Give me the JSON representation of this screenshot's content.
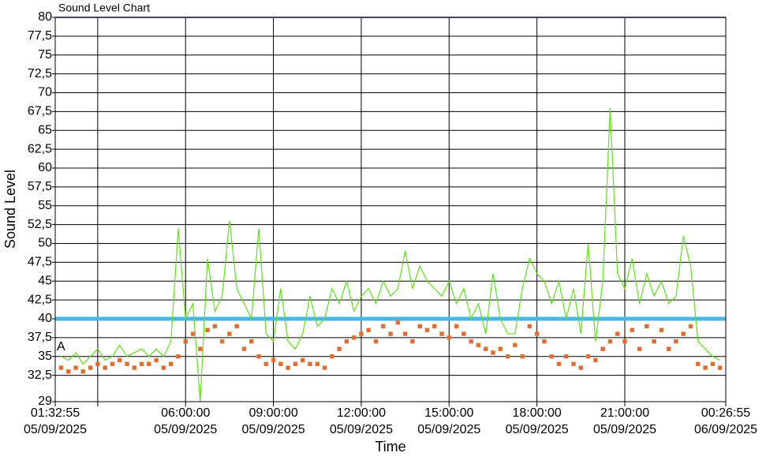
{
  "chart_data": {
    "type": "line",
    "title": "Sound Level Chart",
    "x_label": "Time",
    "y_label": "Sound Level",
    "annotation": "A",
    "xlim": [
      "2025-09-05T01:32:55",
      "2025-09-06T00:26:55"
    ],
    "xticks": [
      {
        "value": "2025-09-05T01:32:55",
        "label": [
          "01:32:55",
          "05/09/2025"
        ]
      },
      "2025-09-05T03:00:00",
      {
        "value": "2025-09-05T06:00:00",
        "label": [
          "06:00:00",
          "05/09/2025"
        ]
      },
      {
        "value": "2025-09-05T09:00:00",
        "label": [
          "09:00:00",
          "05/09/2025"
        ]
      },
      {
        "value": "2025-09-05T12:00:00",
        "label": [
          "12:00:00",
          "05/09/2025"
        ]
      },
      {
        "value": "2025-09-05T15:00:00",
        "label": [
          "15:00:00",
          "05/09/2025"
        ]
      },
      {
        "value": "2025-09-05T18:00:00",
        "label": [
          "18:00:00",
          "05/09/2025"
        ]
      },
      {
        "value": "2025-09-05T21:00:00",
        "label": [
          "21:00:00",
          "05/09/2025"
        ]
      },
      {
        "value": "2025-09-06T00:26:55",
        "label": [
          "00:26:55",
          "06/09/2025"
        ]
      }
    ],
    "ylim": [
      29,
      80
    ],
    "yticks": [
      29,
      {
        "value": 32.5,
        "label": "32,5"
      },
      35,
      {
        "value": 37.5,
        "label": "37,5"
      },
      40,
      {
        "value": 42.5,
        "label": "42,5"
      },
      45,
      {
        "value": 47.5,
        "label": "47,5"
      },
      50,
      {
        "value": 52.5,
        "label": "52,5"
      },
      55,
      {
        "value": 57.5,
        "label": "57,5"
      },
      60,
      {
        "value": 62.5,
        "label": "62,5"
      },
      65,
      {
        "value": 67.5,
        "label": "67,5"
      },
      70,
      {
        "value": 72.5,
        "label": "72,5"
      },
      75,
      {
        "value": 77.5,
        "label": "77,5"
      },
      80
    ],
    "grid": true,
    "reference_line": {
      "value": 40,
      "color": "#45b8e8"
    },
    "x": [
      "2025-09-05T01:45:00",
      "2025-09-05T02:00:00",
      "2025-09-05T02:15:00",
      "2025-09-05T02:30:00",
      "2025-09-05T02:45:00",
      "2025-09-05T03:00:00",
      "2025-09-05T03:15:00",
      "2025-09-05T03:30:00",
      "2025-09-05T03:45:00",
      "2025-09-05T04:00:00",
      "2025-09-05T04:15:00",
      "2025-09-05T04:30:00",
      "2025-09-05T04:45:00",
      "2025-09-05T05:00:00",
      "2025-09-05T05:15:00",
      "2025-09-05T05:30:00",
      "2025-09-05T05:45:00",
      "2025-09-05T06:00:00",
      "2025-09-05T06:15:00",
      "2025-09-05T06:30:00",
      "2025-09-05T06:45:00",
      "2025-09-05T07:00:00",
      "2025-09-05T07:15:00",
      "2025-09-05T07:30:00",
      "2025-09-05T07:45:00",
      "2025-09-05T08:00:00",
      "2025-09-05T08:15:00",
      "2025-09-05T08:30:00",
      "2025-09-05T08:45:00",
      "2025-09-05T09:00:00",
      "2025-09-05T09:15:00",
      "2025-09-05T09:30:00",
      "2025-09-05T09:45:00",
      "2025-09-05T10:00:00",
      "2025-09-05T10:15:00",
      "2025-09-05T10:30:00",
      "2025-09-05T10:45:00",
      "2025-09-05T11:00:00",
      "2025-09-05T11:15:00",
      "2025-09-05T11:30:00",
      "2025-09-05T11:45:00",
      "2025-09-05T12:00:00",
      "2025-09-05T12:15:00",
      "2025-09-05T12:30:00",
      "2025-09-05T12:45:00",
      "2025-09-05T13:00:00",
      "2025-09-05T13:15:00",
      "2025-09-05T13:30:00",
      "2025-09-05T13:45:00",
      "2025-09-05T14:00:00",
      "2025-09-05T14:15:00",
      "2025-09-05T14:30:00",
      "2025-09-05T14:45:00",
      "2025-09-05T15:00:00",
      "2025-09-05T15:15:00",
      "2025-09-05T15:30:00",
      "2025-09-05T15:45:00",
      "2025-09-05T16:00:00",
      "2025-09-05T16:15:00",
      "2025-09-05T16:30:00",
      "2025-09-05T16:45:00",
      "2025-09-05T17:00:00",
      "2025-09-05T17:15:00",
      "2025-09-05T17:30:00",
      "2025-09-05T17:45:00",
      "2025-09-05T18:00:00",
      "2025-09-05T18:15:00",
      "2025-09-05T18:30:00",
      "2025-09-05T18:45:00",
      "2025-09-05T19:00:00",
      "2025-09-05T19:15:00",
      "2025-09-05T19:30:00",
      "2025-09-05T19:45:00",
      "2025-09-05T20:00:00",
      "2025-09-05T20:15:00",
      "2025-09-05T20:30:00",
      "2025-09-05T20:45:00",
      "2025-09-05T21:00:00",
      "2025-09-05T21:15:00",
      "2025-09-05T21:30:00",
      "2025-09-05T21:45:00",
      "2025-09-05T22:00:00",
      "2025-09-05T22:15:00",
      "2025-09-05T22:30:00",
      "2025-09-05T22:45:00",
      "2025-09-05T23:00:00",
      "2025-09-05T23:15:00",
      "2025-09-05T23:30:00",
      "2025-09-05T23:45:00",
      "2025-09-06T00:00:00",
      "2025-09-06T00:15:00"
    ],
    "series": [
      {
        "color": "#66dd22",
        "style": "line",
        "values": [
          35,
          34.5,
          35.5,
          34,
          35,
          36,
          34.5,
          35,
          36.5,
          35,
          35.5,
          36,
          35,
          36,
          35,
          37,
          52,
          40,
          42,
          29,
          48,
          41,
          43,
          53,
          44,
          42,
          40,
          52,
          38,
          37,
          44,
          37,
          36,
          38,
          43,
          39,
          40,
          44,
          42,
          45,
          41,
          43,
          44,
          42,
          45,
          43,
          44,
          49,
          44,
          47,
          45,
          44,
          43,
          45,
          42,
          44,
          40,
          42,
          38,
          46,
          40,
          38,
          38,
          44,
          48,
          46,
          45,
          42,
          45,
          40,
          44,
          38,
          50,
          37,
          45,
          68,
          46,
          44,
          48,
          42,
          46,
          43,
          45,
          42,
          43,
          51,
          47,
          37,
          36,
          35,
          34.5
        ]
      },
      {
        "color": "#e8643c",
        "style": "markers",
        "values": [
          33.5,
          33,
          33.5,
          33,
          33.5,
          34,
          33.5,
          34,
          34.5,
          34,
          33.5,
          34,
          34,
          34.5,
          33.5,
          34,
          35,
          37,
          38,
          36,
          38.5,
          39,
          37,
          38,
          39,
          36,
          37,
          35,
          34,
          34.5,
          34,
          33.5,
          34,
          34.5,
          34,
          34,
          33.5,
          35,
          36,
          37,
          37.5,
          38,
          38.5,
          37,
          39,
          38,
          39.5,
          38,
          37,
          39,
          38.5,
          39,
          38,
          37.5,
          39,
          38,
          37,
          36.5,
          36,
          35.5,
          36,
          35,
          36.5,
          35,
          39,
          38,
          37,
          35,
          34,
          35,
          34,
          33.5,
          35,
          34.5,
          36,
          37,
          38,
          37,
          38.5,
          36,
          39,
          37,
          38.5,
          36,
          37,
          38,
          39,
          34,
          33.5,
          34,
          33.5
        ]
      }
    ]
  }
}
